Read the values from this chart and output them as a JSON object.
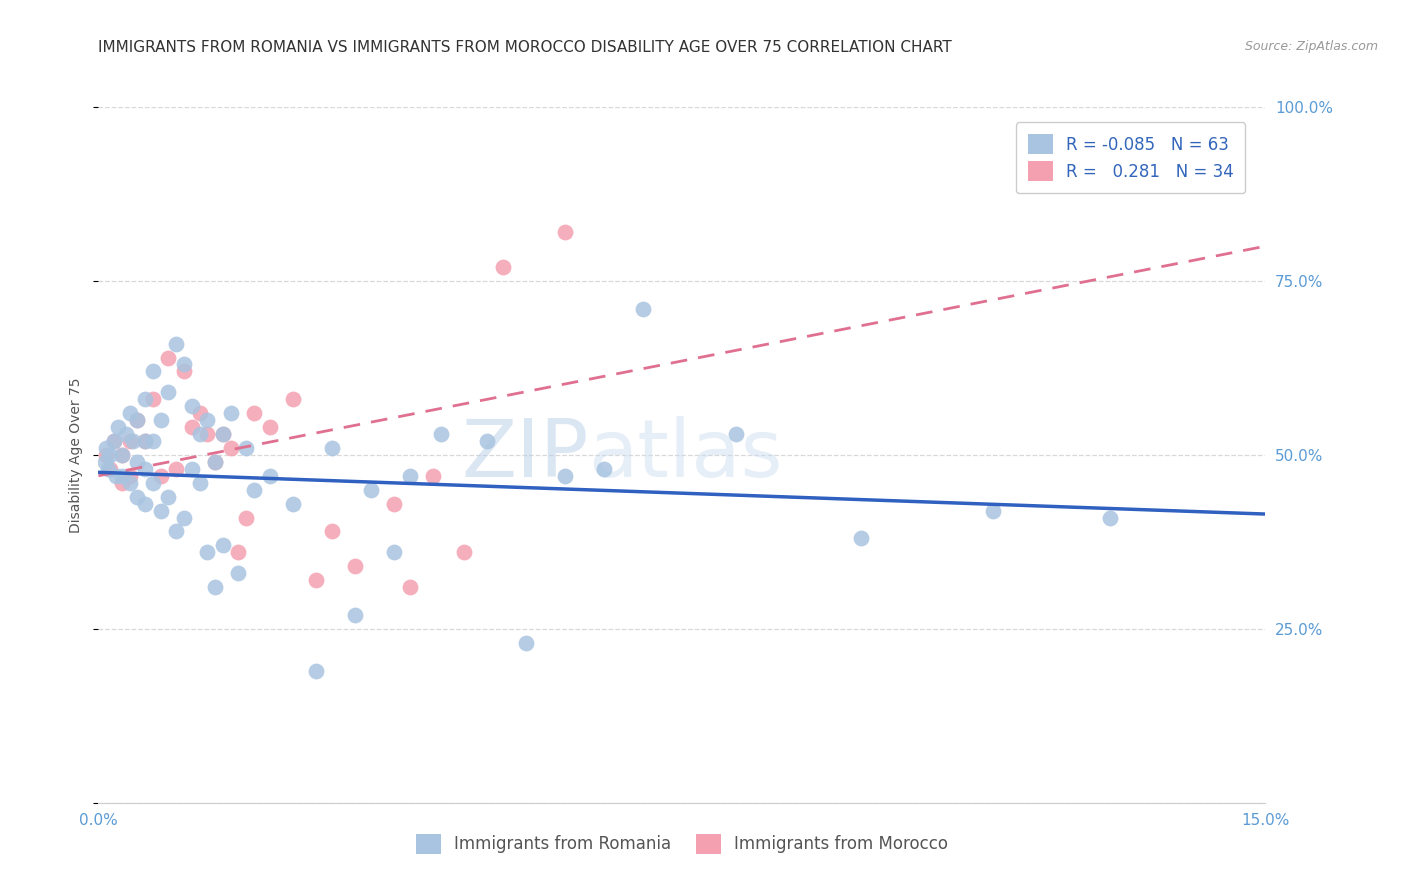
{
  "title": "IMMIGRANTS FROM ROMANIA VS IMMIGRANTS FROM MOROCCO DISABILITY AGE OVER 75 CORRELATION CHART",
  "source": "Source: ZipAtlas.com",
  "ylabel": "Disability Age Over 75",
  "xmin": 0.0,
  "xmax": 0.15,
  "ymin": 0.0,
  "ymax": 1.0,
  "yticks": [
    0.0,
    0.25,
    0.5,
    0.75,
    1.0
  ],
  "ytick_labels_right": [
    "",
    "25.0%",
    "50.0%",
    "75.0%",
    "100.0%"
  ],
  "xticks": [
    0.0,
    0.03,
    0.06,
    0.09,
    0.12,
    0.15
  ],
  "xtick_labels": [
    "0.0%",
    "",
    "",
    "",
    "",
    "15.0%"
  ],
  "romania_color": "#a8c4e0",
  "morocco_color": "#f4a0b0",
  "romania_line_color": "#3060c0",
  "morocco_line_color": "#e07090",
  "romania_R": -0.085,
  "romania_N": 63,
  "morocco_R": 0.281,
  "morocco_N": 34,
  "romania_line_x0": 0.0,
  "romania_line_x1": 0.15,
  "romania_line_y0": 0.475,
  "romania_line_y1": 0.415,
  "morocco_line_x0": 0.0,
  "morocco_line_x1": 0.15,
  "morocco_line_y0": 0.47,
  "morocco_line_y1": 0.8,
  "romania_scatter_x": [
    0.0008,
    0.001,
    0.0012,
    0.0015,
    0.002,
    0.0022,
    0.0025,
    0.003,
    0.003,
    0.0035,
    0.004,
    0.004,
    0.0045,
    0.005,
    0.005,
    0.005,
    0.006,
    0.006,
    0.006,
    0.006,
    0.007,
    0.007,
    0.007,
    0.008,
    0.008,
    0.009,
    0.009,
    0.01,
    0.01,
    0.011,
    0.011,
    0.012,
    0.012,
    0.013,
    0.013,
    0.014,
    0.014,
    0.015,
    0.015,
    0.016,
    0.016,
    0.017,
    0.018,
    0.019,
    0.02,
    0.022,
    0.025,
    0.028,
    0.03,
    0.033,
    0.035,
    0.038,
    0.04,
    0.044,
    0.05,
    0.055,
    0.06,
    0.065,
    0.07,
    0.082,
    0.098,
    0.115,
    0.13
  ],
  "romania_scatter_y": [
    0.49,
    0.51,
    0.48,
    0.5,
    0.52,
    0.47,
    0.54,
    0.5,
    0.47,
    0.53,
    0.56,
    0.46,
    0.52,
    0.55,
    0.49,
    0.44,
    0.58,
    0.52,
    0.48,
    0.43,
    0.62,
    0.52,
    0.46,
    0.55,
    0.42,
    0.59,
    0.44,
    0.66,
    0.39,
    0.63,
    0.41,
    0.57,
    0.48,
    0.53,
    0.46,
    0.55,
    0.36,
    0.49,
    0.31,
    0.53,
    0.37,
    0.56,
    0.33,
    0.51,
    0.45,
    0.47,
    0.43,
    0.19,
    0.51,
    0.27,
    0.45,
    0.36,
    0.47,
    0.53,
    0.52,
    0.23,
    0.47,
    0.48,
    0.71,
    0.53,
    0.38,
    0.42,
    0.41
  ],
  "morocco_scatter_x": [
    0.001,
    0.0015,
    0.002,
    0.003,
    0.003,
    0.004,
    0.004,
    0.005,
    0.006,
    0.007,
    0.008,
    0.009,
    0.01,
    0.011,
    0.012,
    0.013,
    0.014,
    0.015,
    0.016,
    0.017,
    0.018,
    0.019,
    0.02,
    0.022,
    0.025,
    0.028,
    0.03,
    0.033,
    0.038,
    0.04,
    0.043,
    0.047,
    0.052,
    0.06
  ],
  "morocco_scatter_y": [
    0.5,
    0.48,
    0.52,
    0.5,
    0.46,
    0.52,
    0.47,
    0.55,
    0.52,
    0.58,
    0.47,
    0.64,
    0.48,
    0.62,
    0.54,
    0.56,
    0.53,
    0.49,
    0.53,
    0.51,
    0.36,
    0.41,
    0.56,
    0.54,
    0.58,
    0.32,
    0.39,
    0.34,
    0.43,
    0.31,
    0.47,
    0.36,
    0.77,
    0.82
  ],
  "watermark_zip": "ZIP",
  "watermark_atlas": "atlas",
  "background_color": "#ffffff",
  "grid_color": "#d8d8d8",
  "grid_style": "--",
  "tick_color": "#5b9bd5",
  "ylabel_color": "#555555",
  "title_color": "#333333",
  "source_color": "#999999",
  "title_fontsize": 11,
  "axis_label_fontsize": 10,
  "tick_fontsize": 11,
  "legend_fontsize": 12
}
